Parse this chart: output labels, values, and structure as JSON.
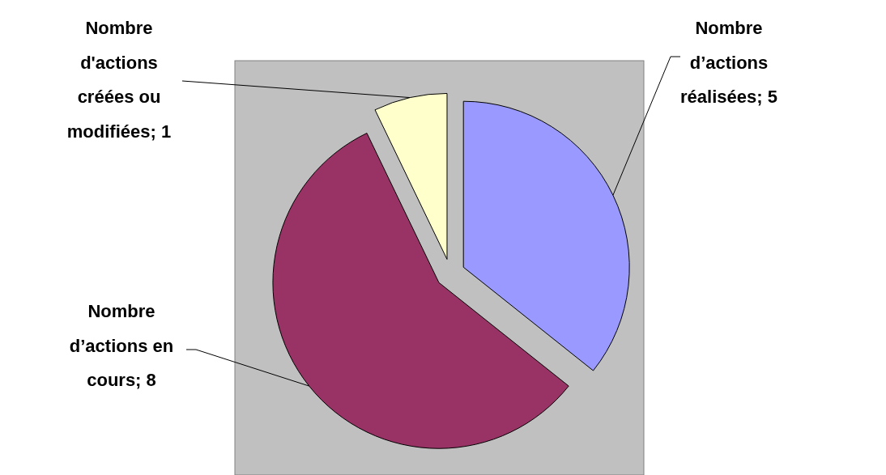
{
  "chart_data": {
    "type": "pie",
    "categories": [
      "Nombre d’actions réalisées; 5",
      "Nombre d’actions en cours; 8",
      "Nombre d'actions créées ou modifiées; 1"
    ],
    "values": [
      5,
      8,
      1
    ],
    "colors": [
      "#9999ff",
      "#993366",
      "#ffffcc"
    ]
  }
}
